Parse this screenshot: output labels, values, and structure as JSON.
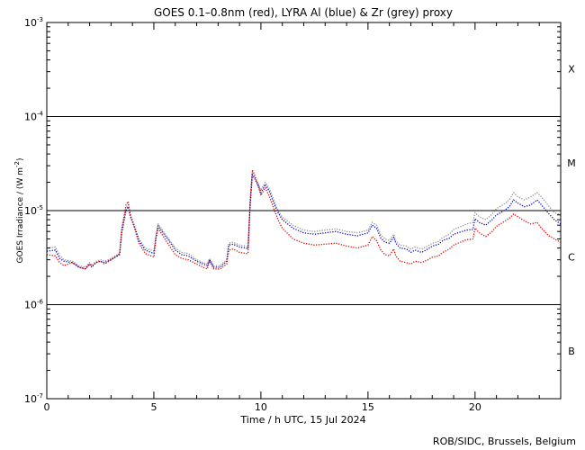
{
  "chart_data": {
    "type": "line",
    "title": "GOES 0.1–0.8nm (red), LYRA Al (blue) & Zr (grey) proxy",
    "xlabel": "Time / h UTC, 15 Jul 2024",
    "ylabel_main": "GOES Irradiance / (W m",
    "ylabel_exp": "-2",
    "ylabel_close": ")",
    "xlim": [
      0,
      24
    ],
    "ylim": [
      1e-07,
      0.001
    ],
    "yscale": "log",
    "x_ticks": [
      {
        "value": 0,
        "label": "0"
      },
      {
        "value": 5,
        "label": "5"
      },
      {
        "value": 10,
        "label": "10"
      },
      {
        "value": 15,
        "label": "15"
      },
      {
        "value": 20,
        "label": "20"
      }
    ],
    "y_ticks": [
      {
        "value": 1e-07,
        "base": "10",
        "exp": "-7"
      },
      {
        "value": 1e-06,
        "base": "10",
        "exp": "-6"
      },
      {
        "value": 1e-05,
        "base": "10",
        "exp": "-5"
      },
      {
        "value": 0.0001,
        "base": "10",
        "exp": "-4"
      },
      {
        "value": 0.001,
        "base": "10",
        "exp": "-3"
      }
    ],
    "flare_class_labels": [
      {
        "label": "X",
        "value": 0.00032
      },
      {
        "label": "M",
        "value": 3.2e-05
      },
      {
        "label": "C",
        "value": 3.2e-06
      },
      {
        "label": "B",
        "value": 3.2e-07
      }
    ],
    "reference_lines": [
      1e-06,
      1e-05,
      0.0001
    ],
    "series": [
      {
        "color": "#8c8c8c",
        "points": [
          [
            0,
            4e-06
          ],
          [
            0.4,
            4.1e-06
          ],
          [
            0.6,
            3.3e-06
          ],
          [
            0.8,
            3e-06
          ],
          [
            1.2,
            2.9e-06
          ],
          [
            1.5,
            2.6e-06
          ],
          [
            1.8,
            2.5e-06
          ],
          [
            2.0,
            2.8e-06
          ],
          [
            2.1,
            2.6e-06
          ],
          [
            2.3,
            2.9e-06
          ],
          [
            2.5,
            3e-06
          ],
          [
            2.7,
            2.9e-06
          ],
          [
            3.0,
            3.1e-06
          ],
          [
            3.2,
            3.3e-06
          ],
          [
            3.4,
            3.5e-06
          ],
          [
            3.5,
            6e-06
          ],
          [
            3.7,
            1.05e-05
          ],
          [
            3.8,
            1.15e-05
          ],
          [
            3.9,
            9e-06
          ],
          [
            4.1,
            7e-06
          ],
          [
            4.3,
            5e-06
          ],
          [
            4.6,
            4e-06
          ],
          [
            5.0,
            3.7e-06
          ],
          [
            5.1,
            5.5e-06
          ],
          [
            5.2,
            7.2e-06
          ],
          [
            5.4,
            6.2e-06
          ],
          [
            5.7,
            5e-06
          ],
          [
            6.0,
            4e-06
          ],
          [
            6.3,
            3.6e-06
          ],
          [
            6.6,
            3.5e-06
          ],
          [
            7.0,
            3e-06
          ],
          [
            7.3,
            2.8e-06
          ],
          [
            7.5,
            2.7e-06
          ],
          [
            7.6,
            3.1e-06
          ],
          [
            7.8,
            2.6e-06
          ],
          [
            8.1,
            2.6e-06
          ],
          [
            8.4,
            3e-06
          ],
          [
            8.5,
            4.5e-06
          ],
          [
            8.7,
            4.6e-06
          ],
          [
            9.0,
            4.3e-06
          ],
          [
            9.3,
            4.2e-06
          ],
          [
            9.4,
            4.1e-06
          ],
          [
            9.5,
            1.2e-05
          ],
          [
            9.6,
            2.5e-05
          ],
          [
            9.7,
            2.3e-05
          ],
          [
            9.9,
            1.9e-05
          ],
          [
            10.0,
            1.65e-05
          ],
          [
            10.2,
            2e-05
          ],
          [
            10.4,
            1.7e-05
          ],
          [
            10.6,
            1.3e-05
          ],
          [
            10.8,
            1e-05
          ],
          [
            11.0,
            8.5e-06
          ],
          [
            11.5,
            7e-06
          ],
          [
            12.0,
            6.2e-06
          ],
          [
            12.5,
            6e-06
          ],
          [
            13.0,
            6.2e-06
          ],
          [
            13.5,
            6.4e-06
          ],
          [
            14.0,
            6e-06
          ],
          [
            14.5,
            5.8e-06
          ],
          [
            15.0,
            6.2e-06
          ],
          [
            15.2,
            7.5e-06
          ],
          [
            15.4,
            7e-06
          ],
          [
            15.6,
            5.5e-06
          ],
          [
            15.8,
            5e-06
          ],
          [
            16.0,
            4.8e-06
          ],
          [
            16.2,
            5.6e-06
          ],
          [
            16.3,
            4.8e-06
          ],
          [
            16.5,
            4.3e-06
          ],
          [
            16.8,
            4.2e-06
          ],
          [
            17.0,
            3.9e-06
          ],
          [
            17.2,
            4.1e-06
          ],
          [
            17.5,
            3.9e-06
          ],
          [
            17.8,
            4.2e-06
          ],
          [
            18.0,
            4.5e-06
          ],
          [
            18.3,
            4.7e-06
          ],
          [
            18.5,
            5.2e-06
          ],
          [
            18.8,
            5.6e-06
          ],
          [
            19.0,
            6.3e-06
          ],
          [
            19.3,
            6.7e-06
          ],
          [
            19.6,
            7.2e-06
          ],
          [
            19.9,
            7.5e-06
          ],
          [
            20.0,
            9.5e-06
          ],
          [
            20.2,
            8.6e-06
          ],
          [
            20.5,
            8e-06
          ],
          [
            20.8,
            9.2e-06
          ],
          [
            21.0,
            1.05e-05
          ],
          [
            21.3,
            1.15e-05
          ],
          [
            21.6,
            1.3e-05
          ],
          [
            21.8,
            1.55e-05
          ],
          [
            22.0,
            1.4e-05
          ],
          [
            22.3,
            1.3e-05
          ],
          [
            22.6,
            1.4e-05
          ],
          [
            22.9,
            1.55e-05
          ],
          [
            23.1,
            1.4e-05
          ],
          [
            23.4,
            1.15e-05
          ],
          [
            23.7,
            9.5e-06
          ],
          [
            24.0,
            9e-06
          ]
        ]
      },
      {
        "color": "#0000cc",
        "points": [
          [
            0,
            3.7e-06
          ],
          [
            0.4,
            3.8e-06
          ],
          [
            0.6,
            3.1e-06
          ],
          [
            0.8,
            2.9e-06
          ],
          [
            1.2,
            2.8e-06
          ],
          [
            1.5,
            2.5e-06
          ],
          [
            1.8,
            2.4e-06
          ],
          [
            2.0,
            2.7e-06
          ],
          [
            2.1,
            2.5e-06
          ],
          [
            2.3,
            2.8e-06
          ],
          [
            2.5,
            2.9e-06
          ],
          [
            2.7,
            2.8e-06
          ],
          [
            3.0,
            3e-06
          ],
          [
            3.2,
            3.2e-06
          ],
          [
            3.4,
            3.4e-06
          ],
          [
            3.5,
            5.8e-06
          ],
          [
            3.7,
            1e-05
          ],
          [
            3.8,
            1.1e-05
          ],
          [
            3.9,
            8.6e-06
          ],
          [
            4.1,
            6.7e-06
          ],
          [
            4.3,
            4.8e-06
          ],
          [
            4.6,
            3.8e-06
          ],
          [
            5.0,
            3.5e-06
          ],
          [
            5.1,
            5.2e-06
          ],
          [
            5.2,
            6.9e-06
          ],
          [
            5.4,
            5.9e-06
          ],
          [
            5.7,
            4.8e-06
          ],
          [
            6.0,
            3.8e-06
          ],
          [
            6.3,
            3.4e-06
          ],
          [
            6.6,
            3.3e-06
          ],
          [
            7.0,
            2.9e-06
          ],
          [
            7.3,
            2.7e-06
          ],
          [
            7.5,
            2.6e-06
          ],
          [
            7.6,
            3e-06
          ],
          [
            7.8,
            2.5e-06
          ],
          [
            8.1,
            2.5e-06
          ],
          [
            8.4,
            2.9e-06
          ],
          [
            8.5,
            4.3e-06
          ],
          [
            8.7,
            4.4e-06
          ],
          [
            9.0,
            4.1e-06
          ],
          [
            9.3,
            4e-06
          ],
          [
            9.4,
            3.9e-06
          ],
          [
            9.5,
            1.15e-05
          ],
          [
            9.6,
            2.4e-05
          ],
          [
            9.7,
            2.2e-05
          ],
          [
            9.9,
            1.8e-05
          ],
          [
            10.0,
            1.55e-05
          ],
          [
            10.2,
            1.9e-05
          ],
          [
            10.4,
            1.6e-05
          ],
          [
            10.6,
            1.2e-05
          ],
          [
            10.8,
            9.5e-06
          ],
          [
            11.0,
            8e-06
          ],
          [
            11.5,
            6.5e-06
          ],
          [
            12.0,
            5.8e-06
          ],
          [
            12.5,
            5.6e-06
          ],
          [
            13.0,
            5.8e-06
          ],
          [
            13.5,
            6e-06
          ],
          [
            14.0,
            5.6e-06
          ],
          [
            14.5,
            5.4e-06
          ],
          [
            15.0,
            5.8e-06
          ],
          [
            15.2,
            7e-06
          ],
          [
            15.4,
            6.5e-06
          ],
          [
            15.6,
            5.1e-06
          ],
          [
            15.8,
            4.6e-06
          ],
          [
            16.0,
            4.5e-06
          ],
          [
            16.2,
            5.2e-06
          ],
          [
            16.3,
            4.5e-06
          ],
          [
            16.5,
            4e-06
          ],
          [
            16.8,
            3.9e-06
          ],
          [
            17.0,
            3.6e-06
          ],
          [
            17.2,
            3.8e-06
          ],
          [
            17.5,
            3.6e-06
          ],
          [
            17.8,
            3.9e-06
          ],
          [
            18.0,
            4.2e-06
          ],
          [
            18.3,
            4.4e-06
          ],
          [
            18.5,
            4.8e-06
          ],
          [
            18.8,
            5.1e-06
          ],
          [
            19.0,
            5.6e-06
          ],
          [
            19.3,
            5.9e-06
          ],
          [
            19.6,
            6.2e-06
          ],
          [
            19.9,
            6.3e-06
          ],
          [
            20.0,
            8.2e-06
          ],
          [
            20.2,
            7.5e-06
          ],
          [
            20.5,
            7e-06
          ],
          [
            20.8,
            8e-06
          ],
          [
            21.0,
            9e-06
          ],
          [
            21.3,
            9.8e-06
          ],
          [
            21.6,
            1.1e-05
          ],
          [
            21.8,
            1.3e-05
          ],
          [
            22.0,
            1.2e-05
          ],
          [
            22.3,
            1.1e-05
          ],
          [
            22.6,
            1.15e-05
          ],
          [
            22.9,
            1.3e-05
          ],
          [
            23.1,
            1.15e-05
          ],
          [
            23.4,
            9.5e-06
          ],
          [
            23.7,
            8e-06
          ],
          [
            24.0,
            7.2e-06
          ]
        ]
      },
      {
        "color": "#dd0000",
        "points": [
          [
            0,
            3.4e-06
          ],
          [
            0.4,
            3.3e-06
          ],
          [
            0.6,
            2.8e-06
          ],
          [
            0.8,
            2.6e-06
          ],
          [
            1.2,
            2.8e-06
          ],
          [
            1.5,
            2.5e-06
          ],
          [
            1.8,
            2.4e-06
          ],
          [
            2.0,
            2.7e-06
          ],
          [
            2.1,
            2.6e-06
          ],
          [
            2.3,
            2.8e-06
          ],
          [
            2.5,
            2.9e-06
          ],
          [
            2.7,
            2.7e-06
          ],
          [
            3.0,
            3e-06
          ],
          [
            3.2,
            3.2e-06
          ],
          [
            3.4,
            3.5e-06
          ],
          [
            3.5,
            6.5e-06
          ],
          [
            3.7,
            1.15e-05
          ],
          [
            3.8,
            1.25e-05
          ],
          [
            3.9,
            9e-06
          ],
          [
            4.1,
            6.5e-06
          ],
          [
            4.3,
            4.5e-06
          ],
          [
            4.6,
            3.5e-06
          ],
          [
            5.0,
            3.2e-06
          ],
          [
            5.1,
            5e-06
          ],
          [
            5.2,
            6.5e-06
          ],
          [
            5.4,
            5.5e-06
          ],
          [
            5.7,
            4.3e-06
          ],
          [
            6.0,
            3.4e-06
          ],
          [
            6.3,
            3.1e-06
          ],
          [
            6.6,
            3e-06
          ],
          [
            7.0,
            2.7e-06
          ],
          [
            7.3,
            2.5e-06
          ],
          [
            7.5,
            2.4e-06
          ],
          [
            7.6,
            2.9e-06
          ],
          [
            7.8,
            2.4e-06
          ],
          [
            8.1,
            2.4e-06
          ],
          [
            8.4,
            2.7e-06
          ],
          [
            8.5,
            3.8e-06
          ],
          [
            8.7,
            3.9e-06
          ],
          [
            9.0,
            3.6e-06
          ],
          [
            9.3,
            3.5e-06
          ],
          [
            9.4,
            3.5e-06
          ],
          [
            9.5,
            1.3e-05
          ],
          [
            9.6,
            2.7e-05
          ],
          [
            9.7,
            2.4e-05
          ],
          [
            9.9,
            1.75e-05
          ],
          [
            10.0,
            1.45e-05
          ],
          [
            10.2,
            1.75e-05
          ],
          [
            10.4,
            1.4e-05
          ],
          [
            10.6,
            1.05e-05
          ],
          [
            10.8,
            8e-06
          ],
          [
            11.0,
            6.5e-06
          ],
          [
            11.5,
            5e-06
          ],
          [
            12.0,
            4.5e-06
          ],
          [
            12.5,
            4.3e-06
          ],
          [
            13.0,
            4.4e-06
          ],
          [
            13.5,
            4.5e-06
          ],
          [
            14.0,
            4.2e-06
          ],
          [
            14.5,
            4e-06
          ],
          [
            15.0,
            4.3e-06
          ],
          [
            15.2,
            5.3e-06
          ],
          [
            15.4,
            4.8e-06
          ],
          [
            15.6,
            3.8e-06
          ],
          [
            15.8,
            3.4e-06
          ],
          [
            16.0,
            3.3e-06
          ],
          [
            16.2,
            3.9e-06
          ],
          [
            16.3,
            3.3e-06
          ],
          [
            16.5,
            2.9e-06
          ],
          [
            16.8,
            2.8e-06
          ],
          [
            17.0,
            2.7e-06
          ],
          [
            17.2,
            2.9e-06
          ],
          [
            17.5,
            2.8e-06
          ],
          [
            17.8,
            3e-06
          ],
          [
            18.0,
            3.2e-06
          ],
          [
            18.3,
            3.3e-06
          ],
          [
            18.5,
            3.6e-06
          ],
          [
            18.8,
            3.9e-06
          ],
          [
            19.0,
            4.3e-06
          ],
          [
            19.3,
            4.6e-06
          ],
          [
            19.6,
            4.9e-06
          ],
          [
            19.9,
            5e-06
          ],
          [
            20.0,
            6.5e-06
          ],
          [
            20.2,
            5.8e-06
          ],
          [
            20.5,
            5.3e-06
          ],
          [
            20.8,
            6e-06
          ],
          [
            21.0,
            6.8e-06
          ],
          [
            21.3,
            7.5e-06
          ],
          [
            21.6,
            8.3e-06
          ],
          [
            21.8,
            9.2e-06
          ],
          [
            22.0,
            8.6e-06
          ],
          [
            22.3,
            7.8e-06
          ],
          [
            22.6,
            7.2e-06
          ],
          [
            22.9,
            7.5e-06
          ],
          [
            23.1,
            6.5e-06
          ],
          [
            23.4,
            5.5e-06
          ],
          [
            23.7,
            5e-06
          ],
          [
            24.0,
            4.6e-06
          ]
        ]
      }
    ]
  },
  "footer": {
    "credit": "ROB/SIDC, Brussels, Belgium"
  }
}
